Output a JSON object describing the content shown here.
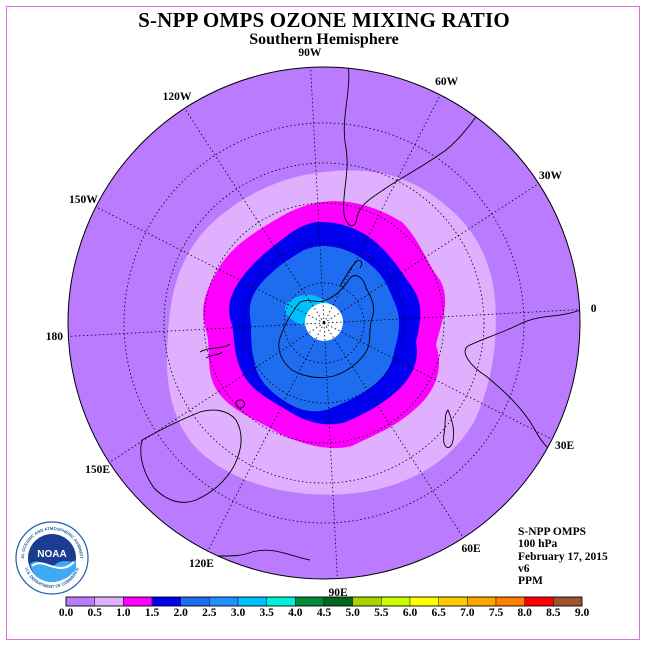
{
  "header": {
    "title": "S-NPP OMPS OZONE MIXING RATIO",
    "subtitle": "Southern Hemisphere"
  },
  "map": {
    "projection": "south-polar-stereographic",
    "longitude_labels": [
      "90W",
      "60W",
      "30W",
      "0",
      "30E",
      "60E",
      "90E",
      "120E",
      "150E",
      "180",
      "150W",
      "120W"
    ],
    "longitudes_deg": [
      -90,
      -60,
      -30,
      0,
      30,
      60,
      90,
      120,
      150,
      180,
      -150,
      -120
    ],
    "field": "ozone mixing ratio",
    "dataset": "v6 · 100 hPa · February 17, 2015"
  },
  "info": {
    "instrument": "S-NPP OMPS",
    "level": "100 hPa",
    "date": "February 17, 2015",
    "version": "v6",
    "units": "PPM"
  },
  "logo": {
    "name": "NOAA",
    "ring_text": "NATIONAL OCEANIC AND ATMOSPHERIC ADMINISTRATION",
    "ring_text_bottom": "U.S. DEPARTMENT OF COMMERCE"
  },
  "colorbar": {
    "ticks": [
      "0.0",
      "0.5",
      "1.0",
      "1.5",
      "2.0",
      "2.5",
      "3.0",
      "3.5",
      "4.0",
      "4.5",
      "5.0",
      "5.5",
      "6.0",
      "6.5",
      "7.0",
      "7.5",
      "8.0",
      "8.5",
      "9.0"
    ],
    "colors": [
      "#bb7bff",
      "#e0b0ff",
      "#ff00ff",
      "#0000ee",
      "#1e6cf0",
      "#1e90ff",
      "#00bfff",
      "#00f0d8",
      "#008c3a",
      "#00681e",
      "#aad400",
      "#ccff00",
      "#ffff00",
      "#ffcc00",
      "#ffa500",
      "#ff7f00",
      "#ff0000",
      "#a0522d"
    ]
  },
  "colors": {
    "band_outer": "#bb7bff",
    "band_1": "#e0b0ff",
    "band_2": "#ff00ff",
    "band_3": "#0000ee",
    "band_4": "#1e6cf0",
    "band_5": "#1e90ff",
    "band_6": "#00bfff",
    "frame": "#e070e0"
  }
}
